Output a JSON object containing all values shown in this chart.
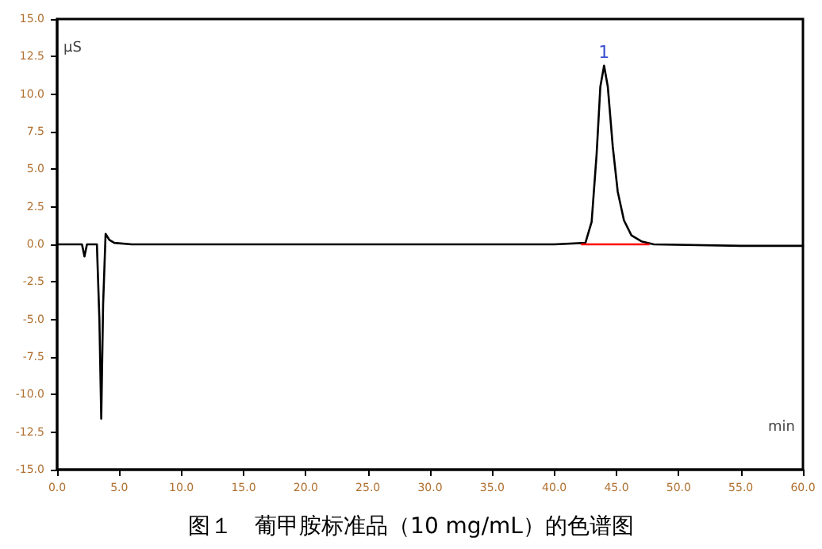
{
  "chart_data": {
    "type": "line",
    "title": "图１　葡甲胺标准品（10 mg/mL）的色谱图",
    "xlabel": "min",
    "ylabel": "µS",
    "xlim": [
      0,
      60
    ],
    "xticks": [
      {
        "value": 0,
        "label": "0.0"
      },
      {
        "value": 5,
        "label": "5.0"
      },
      {
        "value": 10,
        "label": "10.0"
      },
      {
        "value": 15,
        "label": "15.0"
      },
      {
        "value": 20,
        "label": "20.0"
      },
      {
        "value": 25,
        "label": "25.0"
      },
      {
        "value": 30,
        "label": "30.0"
      },
      {
        "value": 35,
        "label": "35.0"
      },
      {
        "value": 40,
        "label": "40.0"
      },
      {
        "value": 45,
        "label": "45.0"
      },
      {
        "value": 50,
        "label": "50.0"
      },
      {
        "value": 55,
        "label": "55.0"
      },
      {
        "value": 60,
        "label": "60.0"
      }
    ],
    "ylim": [
      -15,
      15
    ],
    "yticks": [
      {
        "value": -15,
        "label": "-15.0"
      },
      {
        "value": -12.5,
        "label": "-12.5"
      },
      {
        "value": -10,
        "label": "-10.0"
      },
      {
        "value": -7.5,
        "label": "-7.5"
      },
      {
        "value": -5,
        "label": "-5.0"
      },
      {
        "value": -2.5,
        "label": "-2.5"
      },
      {
        "value": 0,
        "label": "0.0"
      },
      {
        "value": 2.5,
        "label": "2.5"
      },
      {
        "value": 5,
        "label": "5.0"
      },
      {
        "value": 7.5,
        "label": "7.5"
      },
      {
        "value": 10,
        "label": "10.0"
      },
      {
        "value": 12.5,
        "label": "12.5"
      },
      {
        "value": 15,
        "label": "15.0"
      }
    ],
    "grid": false,
    "marker": "none",
    "line_style": "solid",
    "series": [
      {
        "color": "#000000",
        "x": [
          0,
          2.0,
          2.2,
          2.4,
          3.2,
          3.4,
          3.55,
          3.7,
          3.9,
          4.2,
          4.6,
          6,
          10,
          20,
          30,
          40,
          42.5,
          43.0,
          43.4,
          43.7,
          44.0,
          44.3,
          44.7,
          45.1,
          45.6,
          46.2,
          47,
          48,
          55,
          60
        ],
        "values": [
          0,
          0,
          -0.8,
          0,
          0,
          -5,
          -11.6,
          -4,
          0.7,
          0.3,
          0.1,
          0,
          0,
          0,
          0,
          0,
          0.1,
          1.5,
          6,
          10.5,
          11.9,
          10.5,
          6.5,
          3.5,
          1.6,
          0.6,
          0.2,
          0,
          -0.1,
          -0.1
        ]
      },
      {
        "color": "#ff0000",
        "x": [
          42.2,
          47.6
        ],
        "values": [
          0,
          0
        ]
      }
    ],
    "annotations": [
      {
        "text": "1",
        "x": 44.0,
        "y": 11.9
      }
    ]
  }
}
